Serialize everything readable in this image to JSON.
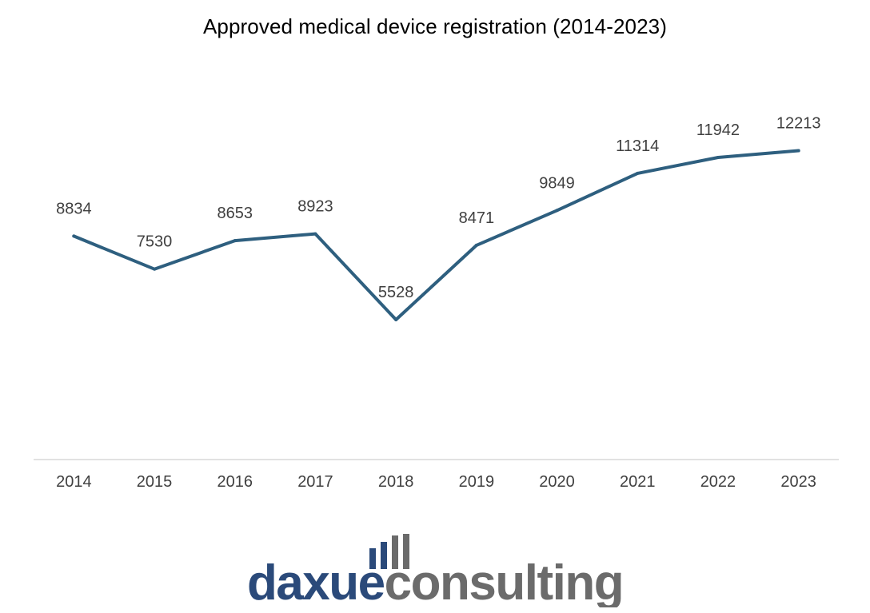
{
  "title": "Approved medical device registration (2014-2023)",
  "chart_data": {
    "type": "line",
    "title": "Approved medical device registration (2014-2023)",
    "xlabel": "",
    "ylabel": "",
    "categories": [
      "2014",
      "2015",
      "2016",
      "2017",
      "2018",
      "2019",
      "2020",
      "2021",
      "2022",
      "2023"
    ],
    "series": [
      {
        "values": [
          8834,
          7530,
          8653,
          8923,
          5528,
          8471,
          9849,
          11314,
          11942,
          12213
        ]
      }
    ],
    "data_labels": [
      "8834",
      "7530",
      "8653",
      "8923",
      "5528",
      "8471",
      "9849",
      "11314",
      "11942",
      "12213"
    ],
    "ylim": [
      0,
      14000
    ],
    "grid": false,
    "legend": "none",
    "colors": {
      "line": "#2e5f7f",
      "axis": "#d9d9d9",
      "tick_text": "#404040",
      "label_text": "#404040"
    }
  },
  "logo": {
    "part1": "daxue",
    "part2": "consulting",
    "color1": "#2b4a7a",
    "color2": "#6b6b6b"
  }
}
